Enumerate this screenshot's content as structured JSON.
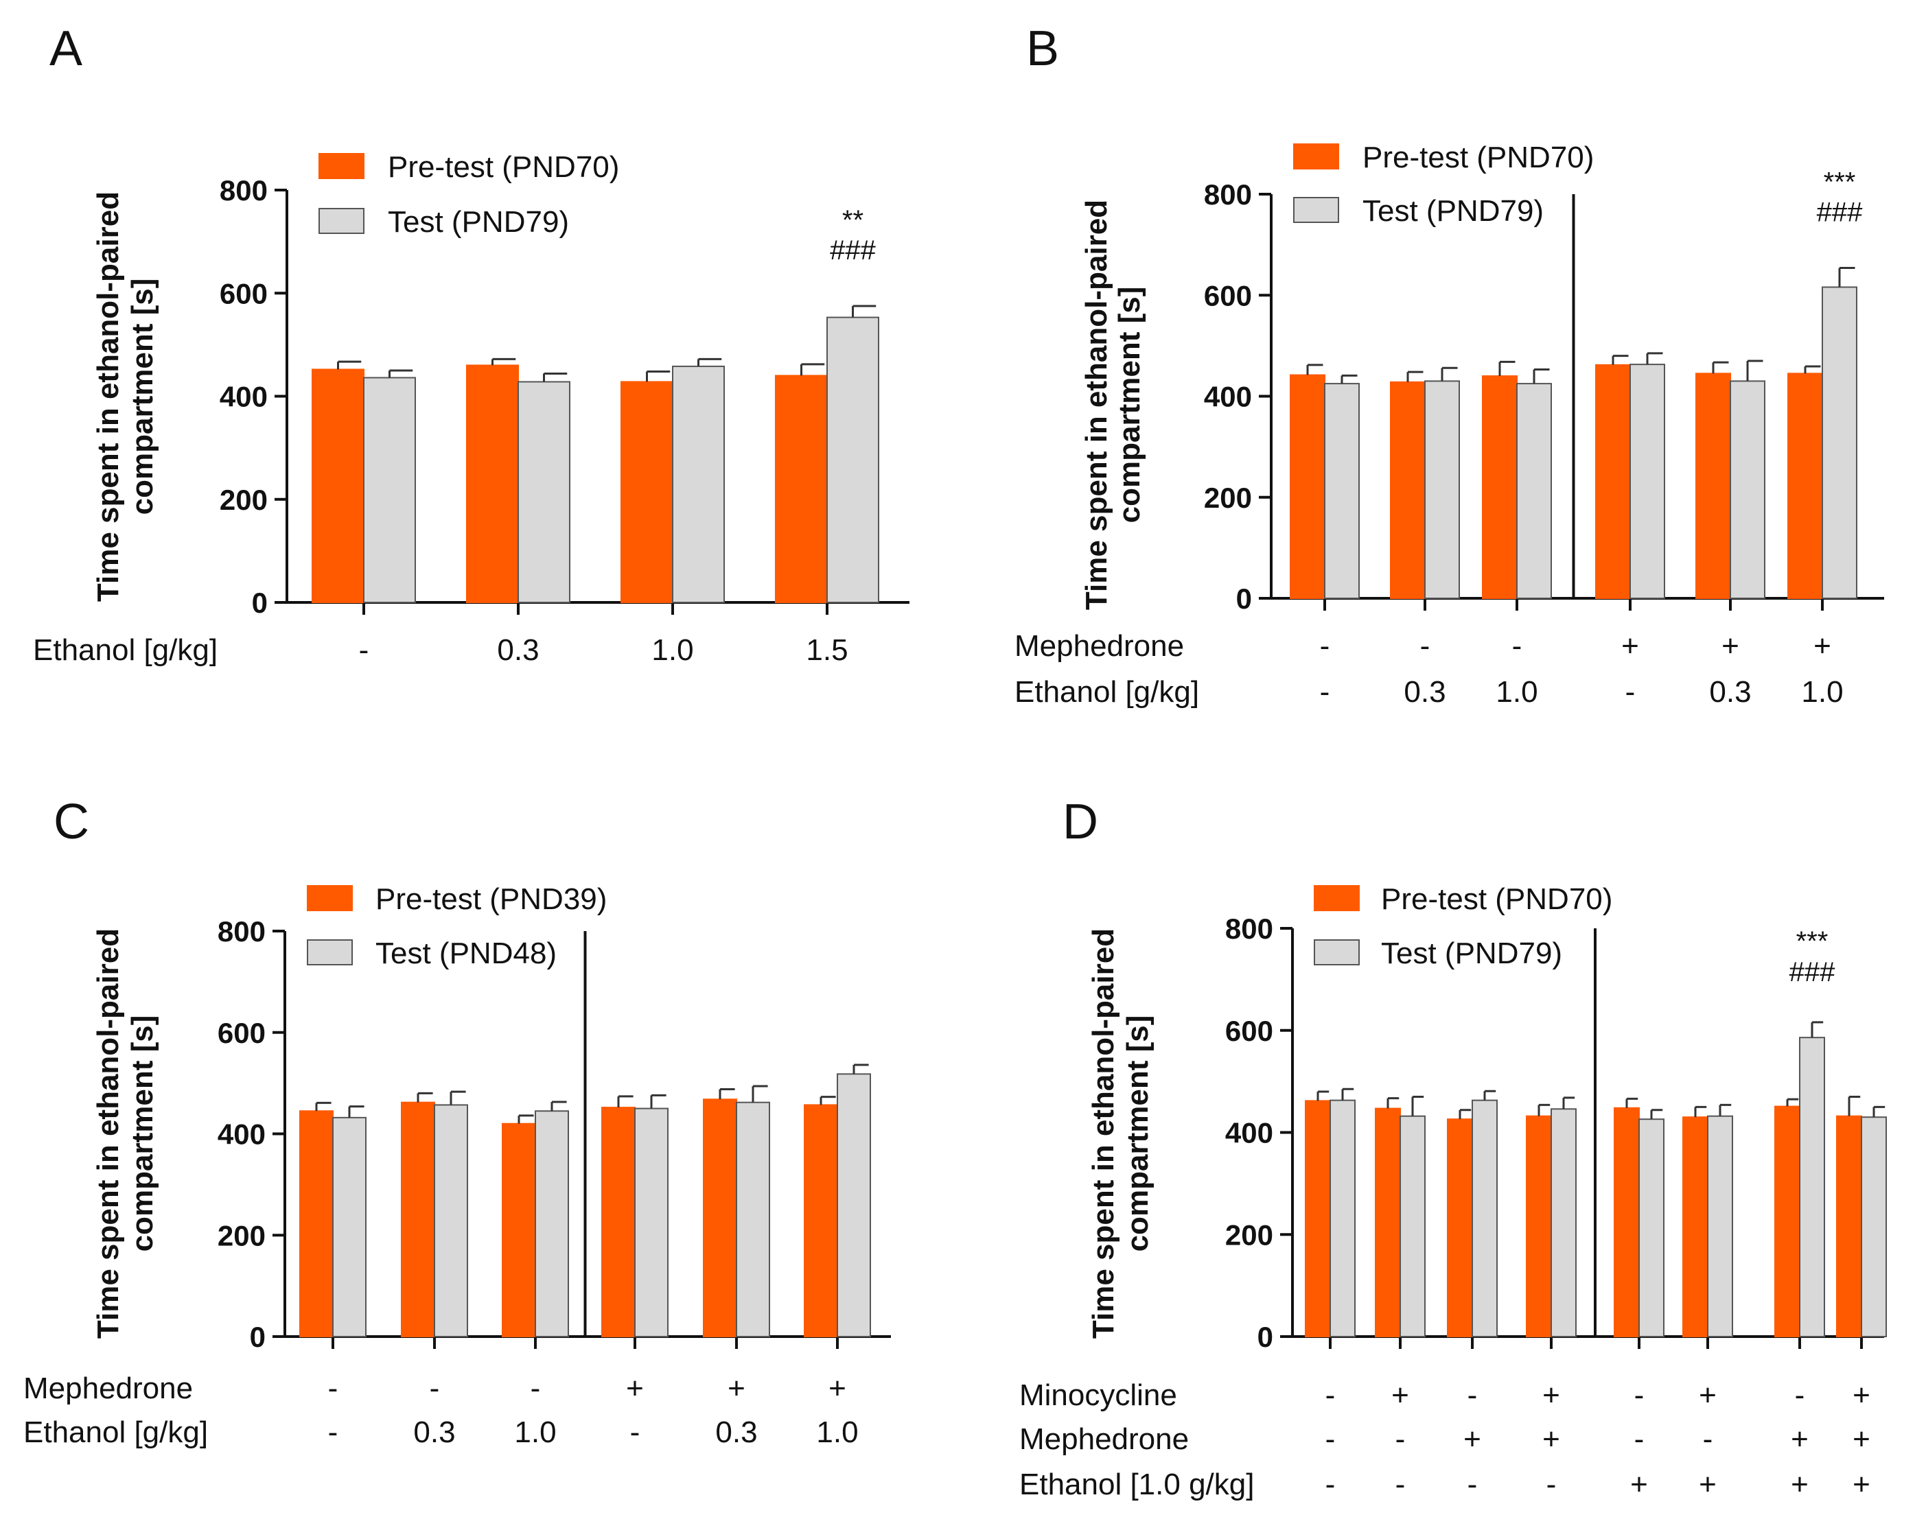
{
  "colors": {
    "pretest": "#ff5a00",
    "test": "#d9d9d9",
    "axis": "#111111"
  },
  "chart_data": [
    {
      "panel": "A",
      "type": "bar",
      "ylabel": [
        "Time spent in ethanol-paired",
        "compartment [s]"
      ],
      "ylim": [
        0,
        800
      ],
      "yticks": [
        "0",
        "200",
        "400",
        "600",
        "800"
      ],
      "series": [
        {
          "name": "Pre-test (PND70)",
          "values": [
            452,
            460,
            428,
            440
          ],
          "errors": [
            15,
            12,
            20,
            22
          ]
        },
        {
          "name": "Test (PND79)",
          "values": [
            436,
            428,
            458,
            553
          ],
          "errors": [
            14,
            16,
            14,
            22
          ]
        }
      ],
      "factors": [
        {
          "label": "Ethanol [g/kg]",
          "values": [
            "-",
            "0.3",
            "1.0",
            "1.5"
          ]
        }
      ],
      "annotations": [
        {
          "group": 3,
          "lines": [
            "**",
            "###"
          ]
        }
      ],
      "divider_after": null
    },
    {
      "panel": "B",
      "type": "bar",
      "ylabel": [
        "Time spent in ethanol-paired",
        "compartment [s]"
      ],
      "ylim": [
        0,
        800
      ],
      "yticks": [
        "0",
        "200",
        "400",
        "600",
        "800"
      ],
      "series": [
        {
          "name": "Pre-test (PND70)",
          "values": [
            442,
            428,
            440,
            462,
            445,
            445
          ],
          "errors": [
            20,
            20,
            28,
            18,
            22,
            14
          ]
        },
        {
          "name": "Test (PND79)",
          "values": [
            425,
            430,
            425,
            463,
            430,
            616
          ],
          "errors": [
            16,
            26,
            28,
            22,
            40,
            38
          ]
        }
      ],
      "factors": [
        {
          "label": "Mephedrone",
          "values": [
            "-",
            "-",
            "-",
            "+",
            "+",
            "+"
          ]
        },
        {
          "label": "Ethanol [g/kg]",
          "values": [
            "-",
            "0.3",
            "1.0",
            "-",
            "0.3",
            "1.0"
          ]
        }
      ],
      "annotations": [
        {
          "group": 5,
          "lines": [
            "***",
            "###"
          ]
        }
      ],
      "divider_after": 3
    },
    {
      "panel": "C",
      "type": "bar",
      "ylabel": [
        "Time spent in ethanol-paired",
        "compartment [s]"
      ],
      "ylim": [
        0,
        800
      ],
      "yticks": [
        "0",
        "200",
        "400",
        "600",
        "800"
      ],
      "series": [
        {
          "name": "Pre-test (PND39)",
          "values": [
            445,
            462,
            420,
            452,
            468,
            457
          ],
          "errors": [
            16,
            18,
            16,
            22,
            20,
            16
          ]
        },
        {
          "name": "Test (PND48)",
          "values": [
            432,
            457,
            445,
            450,
            462,
            518
          ],
          "errors": [
            22,
            26,
            18,
            26,
            32,
            18
          ]
        }
      ],
      "factors": [
        {
          "label": "Mephedrone",
          "values": [
            "-",
            "-",
            "-",
            "+",
            "+",
            "+"
          ]
        },
        {
          "label": "Ethanol [g/kg]",
          "values": [
            "-",
            "0.3",
            "1.0",
            "-",
            "0.3",
            "1.0"
          ]
        }
      ],
      "annotations": [],
      "divider_after": 3
    },
    {
      "panel": "D",
      "type": "bar",
      "ylabel": [
        "Time spent in ethanol-paired",
        "compartment [s]"
      ],
      "ylim": [
        0,
        800
      ],
      "yticks": [
        "0",
        "200",
        "400",
        "600",
        "800"
      ],
      "series": [
        {
          "name": "Pre-test (PND70)",
          "values": [
            462,
            447,
            426,
            432,
            448,
            430,
            451,
            432
          ],
          "errors": [
            18,
            20,
            18,
            22,
            18,
            20,
            14,
            38
          ]
        },
        {
          "name": "Test (PND79)",
          "values": [
            463,
            432,
            463,
            446,
            426,
            432,
            586,
            430
          ],
          "errors": [
            22,
            38,
            18,
            22,
            18,
            22,
            30,
            20
          ]
        }
      ],
      "factors": [
        {
          "label": "Minocycline",
          "values": [
            "-",
            "+",
            "-",
            "+",
            "-",
            "+",
            "-",
            "+"
          ]
        },
        {
          "label": "Mephedrone",
          "values": [
            "-",
            "-",
            "+",
            "+",
            "-",
            "-",
            "+",
            "+"
          ]
        },
        {
          "label": "Ethanol [1.0 g/kg]",
          "values": [
            "-",
            "-",
            "-",
            "-",
            "+",
            "+",
            "+",
            "+"
          ]
        }
      ],
      "annotations": [
        {
          "group": 6,
          "lines": [
            "***",
            "###"
          ]
        }
      ],
      "divider_after": 4
    }
  ]
}
